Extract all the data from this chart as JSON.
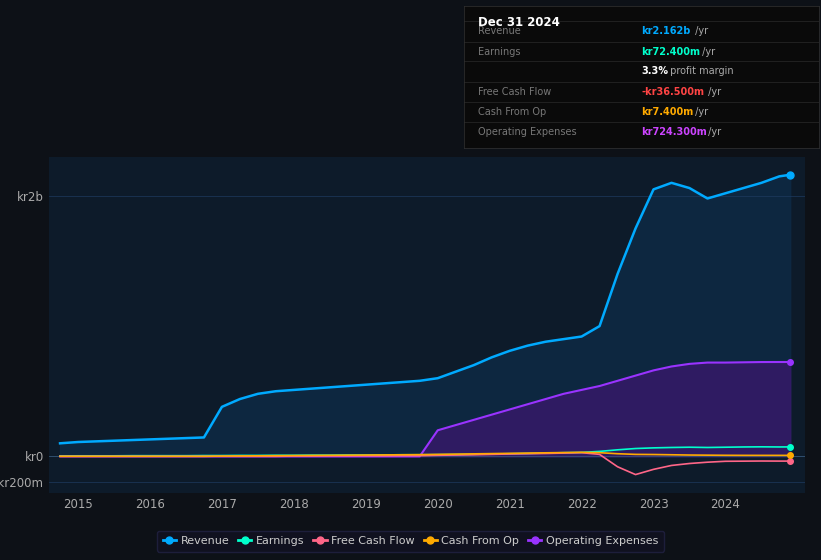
{
  "bg_color": "#0d1117",
  "plot_bg_color": "#0d1b2a",
  "grid_color": "#1e3a5f",
  "title": "Dec 31 2024",
  "years": [
    2014.75,
    2015.0,
    2015.25,
    2015.5,
    2015.75,
    2016.0,
    2016.25,
    2016.5,
    2016.75,
    2017.0,
    2017.25,
    2017.5,
    2017.75,
    2018.0,
    2018.25,
    2018.5,
    2018.75,
    2019.0,
    2019.25,
    2019.5,
    2019.75,
    2020.0,
    2020.25,
    2020.5,
    2020.75,
    2021.0,
    2021.25,
    2021.5,
    2021.75,
    2022.0,
    2022.25,
    2022.5,
    2022.75,
    2023.0,
    2023.25,
    2023.5,
    2023.75,
    2024.0,
    2024.25,
    2024.5,
    2024.75,
    2024.9
  ],
  "revenue": [
    100,
    110,
    115,
    120,
    125,
    130,
    135,
    140,
    145,
    380,
    440,
    480,
    500,
    510,
    520,
    530,
    540,
    550,
    560,
    570,
    580,
    600,
    650,
    700,
    760,
    810,
    850,
    880,
    900,
    920,
    1000,
    1400,
    1750,
    2050,
    2100,
    2060,
    1980,
    2020,
    2060,
    2100,
    2150,
    2162
  ],
  "earnings": [
    3,
    4,
    4,
    4,
    5,
    5,
    5,
    5,
    6,
    6,
    7,
    7,
    8,
    8,
    9,
    9,
    10,
    10,
    11,
    12,
    12,
    13,
    14,
    16,
    18,
    20,
    22,
    25,
    28,
    30,
    38,
    50,
    60,
    65,
    68,
    70,
    68,
    70,
    72,
    73,
    72,
    72.4
  ],
  "free_cash_flow": [
    0,
    0,
    0,
    0,
    0,
    0,
    0,
    0,
    0,
    0,
    0,
    0,
    0,
    2,
    2,
    3,
    3,
    4,
    4,
    5,
    5,
    8,
    10,
    12,
    15,
    18,
    20,
    22,
    25,
    28,
    15,
    -80,
    -140,
    -100,
    -70,
    -55,
    -45,
    -38,
    -37,
    -36,
    -36.5,
    -36.5
  ],
  "cash_from_op": [
    0,
    0,
    0,
    0,
    0,
    0,
    0,
    0,
    0,
    2,
    3,
    4,
    5,
    6,
    7,
    8,
    9,
    10,
    11,
    12,
    13,
    15,
    17,
    19,
    21,
    23,
    25,
    27,
    29,
    31,
    28,
    20,
    15,
    14,
    12,
    10,
    9,
    8,
    7.5,
    7.4,
    7.4,
    7.4
  ],
  "operating_expenses": [
    0,
    0,
    0,
    0,
    0,
    0,
    0,
    0,
    0,
    0,
    0,
    0,
    0,
    0,
    0,
    0,
    0,
    0,
    0,
    0,
    0,
    200,
    240,
    280,
    320,
    360,
    400,
    440,
    480,
    510,
    540,
    580,
    620,
    660,
    690,
    710,
    720,
    720,
    722,
    724,
    724.3,
    724.3
  ],
  "revenue_color": "#00aaff",
  "earnings_color": "#00ffcc",
  "fcf_color": "#ff6688",
  "cash_op_color": "#ffaa00",
  "opex_color": "#9933ff",
  "opex_fill_color": "#331a66",
  "revenue_fill_color": "#0d2a44",
  "ylim": [
    -280,
    2300
  ],
  "yticks_labels": [
    "kr2b",
    "kr0",
    "-kr200m"
  ],
  "yticks_values": [
    2000,
    0,
    -200
  ],
  "xticks": [
    2015,
    2016,
    2017,
    2018,
    2019,
    2020,
    2021,
    2022,
    2023,
    2024
  ],
  "legend_items": [
    {
      "label": "Revenue",
      "color": "#00aaff"
    },
    {
      "label": "Earnings",
      "color": "#00ffcc"
    },
    {
      "label": "Free Cash Flow",
      "color": "#ff6688"
    },
    {
      "label": "Cash From Op",
      "color": "#ffaa00"
    },
    {
      "label": "Operating Expenses",
      "color": "#9933ff"
    }
  ],
  "info_rows": [
    {
      "label": "Revenue",
      "value": "kr2.162b",
      "unit": " /yr",
      "val_color": "#00aaff"
    },
    {
      "label": "Earnings",
      "value": "kr72.400m",
      "unit": " /yr",
      "val_color": "#00ffcc"
    },
    {
      "label": "",
      "value": "3.3%",
      "unit": " profit margin",
      "val_color": "#ffffff"
    },
    {
      "label": "Free Cash Flow",
      "value": "-kr36.500m",
      "unit": " /yr",
      "val_color": "#ff4444"
    },
    {
      "label": "Cash From Op",
      "value": "kr7.400m",
      "unit": " /yr",
      "val_color": "#ffaa00"
    },
    {
      "label": "Operating Expenses",
      "value": "kr724.300m",
      "unit": " /yr",
      "val_color": "#cc44ff"
    }
  ]
}
